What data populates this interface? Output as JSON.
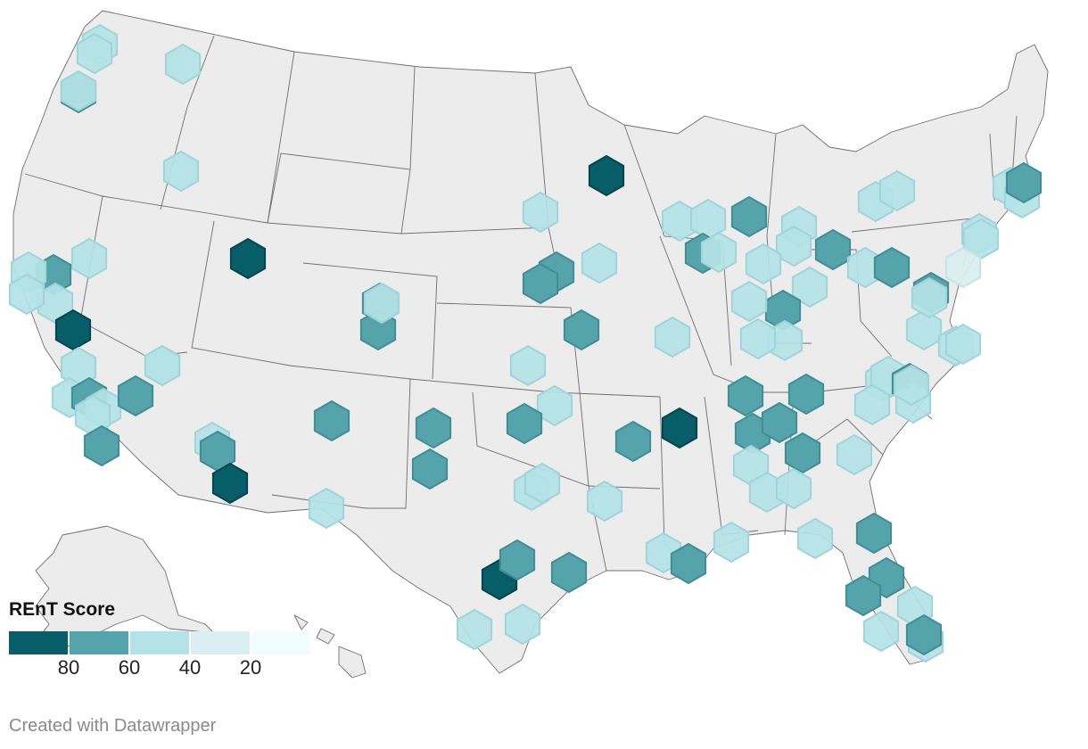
{
  "legend": {
    "title": "REnT Score",
    "swatch_colors": [
      "#075e68",
      "#56a4ab",
      "#b3e3e6",
      "#d9eff1",
      "#effdfd"
    ],
    "ticks": [
      "80",
      "60",
      "40",
      "20"
    ]
  },
  "credit": "Created with Datawrapper",
  "colors": {
    "land": "#ececec",
    "state_border": "#6f6f6f",
    "score_80_plus": "#075e68",
    "score_60_80": "#56a4ab",
    "score_40_60": "#b3e3e6",
    "score_20_40": "#d9eff1"
  },
  "map": {
    "region": "United States (contiguous)",
    "marker_shape": "hexagon",
    "legend_position": "bottom-left"
  },
  "markers": [
    {
      "tier": 3
    },
    {
      "tier": 3
    },
    {
      "tier": 2
    },
    {
      "tier": 3
    },
    {
      "tier": 3
    },
    {
      "tier": 3
    },
    {
      "tier": 1
    },
    {
      "tier": 3
    },
    {
      "tier": 3
    },
    {
      "tier": 3
    },
    {
      "tier": 2
    },
    {
      "tier": 3
    },
    {
      "tier": 3
    },
    {
      "tier": 2
    },
    {
      "tier": 3
    },
    {
      "tier": 3
    },
    {
      "tier": 3
    },
    {
      "tier": 3
    },
    {
      "tier": 3
    },
    {
      "tier": 2
    },
    {
      "tier": 3
    },
    {
      "tier": 3
    },
    {
      "tier": 3
    },
    {
      "tier": 3
    },
    {
      "tier": 3
    },
    {
      "tier": 3
    },
    {
      "tier": 3
    },
    {
      "tier": 2
    },
    {
      "tier": 3
    },
    {
      "tier": 3
    },
    {
      "tier": 3
    },
    {
      "tier": 2
    },
    {
      "tier": 3
    },
    {
      "tier": 3
    },
    {
      "tier": 2
    },
    {
      "tier": 3
    },
    {
      "tier": 3
    },
    {
      "tier": 3
    },
    {
      "tier": 3
    },
    {
      "tier": 2
    },
    {
      "tier": 2
    },
    {
      "tier": 2
    },
    {
      "tier": 3
    },
    {
      "tier": 2
    },
    {
      "tier": 3
    },
    {
      "tier": 1
    },
    {
      "tier": 3
    },
    {
      "tier": 2
    },
    {
      "tier": 3
    },
    {
      "tier": 3
    },
    {
      "tier": 3
    },
    {
      "tier": 1
    },
    {
      "tier": 3
    },
    {
      "tier": 3
    },
    {
      "tier": 2
    },
    {
      "tier": 3
    },
    {
      "tier": 3
    },
    {
      "tier": 2
    },
    {
      "tier": 2
    },
    {
      "tier": 3
    },
    {
      "tier": 3
    },
    {
      "tier": 3
    },
    {
      "tier": 2
    },
    {
      "tier": 1
    },
    {
      "tier": 2
    },
    {
      "tier": 2
    },
    {
      "tier": 2
    },
    {
      "tier": 3
    },
    {
      "tier": 3
    },
    {
      "tier": 3
    },
    {
      "tier": 2
    },
    {
      "tier": 3
    },
    {
      "tier": 3
    },
    {
      "tier": 3
    },
    {
      "tier": 2
    },
    {
      "tier": 1
    },
    {
      "tier": 2
    },
    {
      "tier": 2
    },
    {
      "tier": 2
    },
    {
      "tier": 2
    },
    {
      "tier": 3
    },
    {
      "tier": 3
    },
    {
      "tier": 3
    },
    {
      "tier": 3
    },
    {
      "tier": 2
    },
    {
      "tier": 3
    },
    {
      "tier": 3
    },
    {
      "tier": 2
    },
    {
      "tier": 3
    },
    {
      "tier": 2
    },
    {
      "tier": 2
    },
    {
      "tier": 2
    },
    {
      "tier": 3
    },
    {
      "tier": 3
    },
    {
      "tier": 2
    },
    {
      "tier": 3
    },
    {
      "tier": 3
    },
    {
      "tier": 3
    },
    {
      "tier": 1
    },
    {
      "tier": 2
    },
    {
      "tier": 2
    },
    {
      "tier": 3
    },
    {
      "tier": 2
    },
    {
      "tier": 2
    },
    {
      "tier": 3
    },
    {
      "tier": 4
    },
    {
      "tier": 2
    },
    {
      "tier": 3
    },
    {
      "tier": 3
    },
    {
      "tier": 3
    },
    {
      "tier": 2
    },
    {
      "tier": 3
    },
    {
      "tier": 2
    }
  ]
}
